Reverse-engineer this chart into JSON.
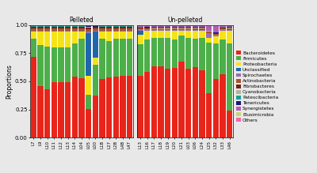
{
  "pelleted_samples": [
    "L7",
    "L9",
    "L10",
    "L11",
    "L12",
    "L13",
    "L14",
    "L04",
    "L05",
    "L00",
    "L1B",
    "L27",
    "L2B",
    "L4B",
    "L47"
  ],
  "unpelleted_samples": [
    "L13",
    "L16",
    "L17",
    "L18",
    "L19",
    "L20",
    "L21",
    "L03",
    "L06",
    "L24",
    "L25",
    "L32",
    "L33",
    "L46"
  ],
  "categories": [
    "Bacteroidetes",
    "Firmicutes",
    "Proteobacteria",
    "Unclassified",
    "Spirochaetes",
    "Actinobacteria",
    "Fibrobacteres",
    "Cyanobacteria",
    "Patescibacteria",
    "Tenericutes",
    "Synergistetes",
    "Elusimicrobia",
    "Others"
  ],
  "colors": [
    "#e8251a",
    "#4daf4a",
    "#f5e31a",
    "#2166ac",
    "#9970ab",
    "#a65628",
    "#7b1c1c",
    "#aab89a",
    "#1a9e96",
    "#17177a",
    "#b05fba",
    "#c8d86e",
    "#f564a9"
  ],
  "pelleted_data": [
    [
      0.7,
      0.46,
      0.43,
      0.49,
      0.5,
      0.49,
      0.54,
      0.52,
      0.2,
      0.36,
      0.52,
      0.53,
      0.54,
      0.54,
      0.54
    ],
    [
      0.16,
      0.36,
      0.38,
      0.31,
      0.31,
      0.31,
      0.3,
      0.34,
      0.1,
      0.26,
      0.36,
      0.32,
      0.34,
      0.33,
      0.33
    ],
    [
      0.06,
      0.12,
      0.13,
      0.14,
      0.14,
      0.14,
      0.1,
      0.06,
      0.13,
      0.06,
      0.06,
      0.08,
      0.06,
      0.06,
      0.06
    ],
    [
      0.002,
      0.002,
      0.002,
      0.002,
      0.002,
      0.002,
      0.002,
      0.002,
      0.3,
      0.22,
      0.002,
      0.002,
      0.002,
      0.002,
      0.002
    ],
    [
      0.01,
      0.01,
      0.01,
      0.01,
      0.01,
      0.01,
      0.01,
      0.01,
      0.01,
      0.01,
      0.01,
      0.01,
      0.01,
      0.01,
      0.01
    ],
    [
      0.02,
      0.02,
      0.02,
      0.02,
      0.02,
      0.02,
      0.02,
      0.02,
      0.02,
      0.02,
      0.02,
      0.02,
      0.02,
      0.02,
      0.02
    ],
    [
      0.01,
      0.01,
      0.01,
      0.01,
      0.01,
      0.01,
      0.01,
      0.01,
      0.01,
      0.01,
      0.01,
      0.01,
      0.01,
      0.01,
      0.01
    ],
    [
      0.003,
      0.003,
      0.003,
      0.003,
      0.003,
      0.003,
      0.003,
      0.003,
      0.003,
      0.003,
      0.003,
      0.003,
      0.003,
      0.003,
      0.003
    ],
    [
      0.003,
      0.003,
      0.003,
      0.003,
      0.003,
      0.003,
      0.003,
      0.003,
      0.003,
      0.003,
      0.003,
      0.003,
      0.003,
      0.003,
      0.003
    ],
    [
      0.003,
      0.003,
      0.003,
      0.003,
      0.003,
      0.003,
      0.003,
      0.003,
      0.003,
      0.003,
      0.003,
      0.003,
      0.003,
      0.003,
      0.003
    ],
    [
      0.003,
      0.003,
      0.003,
      0.003,
      0.003,
      0.003,
      0.003,
      0.003,
      0.003,
      0.003,
      0.003,
      0.003,
      0.003,
      0.003,
      0.003
    ],
    [
      0.003,
      0.003,
      0.003,
      0.003,
      0.003,
      0.003,
      0.003,
      0.003,
      0.003,
      0.003,
      0.003,
      0.003,
      0.003,
      0.003,
      0.003
    ],
    [
      0.003,
      0.003,
      0.003,
      0.003,
      0.003,
      0.003,
      0.003,
      0.003,
      0.003,
      0.003,
      0.003,
      0.003,
      0.003,
      0.003,
      0.003
    ]
  ],
  "unpelleted_data": [
    [
      0.54,
      0.56,
      0.6,
      0.6,
      0.58,
      0.58,
      0.64,
      0.58,
      0.58,
      0.56,
      0.38,
      0.52,
      0.56,
      0.22
    ],
    [
      0.28,
      0.28,
      0.24,
      0.24,
      0.26,
      0.24,
      0.22,
      0.26,
      0.24,
      0.27,
      0.44,
      0.32,
      0.3,
      0.56
    ],
    [
      0.08,
      0.07,
      0.06,
      0.06,
      0.06,
      0.07,
      0.04,
      0.06,
      0.06,
      0.06,
      0.04,
      0.06,
      0.08,
      0.1
    ],
    [
      0.04,
      0.002,
      0.002,
      0.002,
      0.002,
      0.002,
      0.002,
      0.002,
      0.002,
      0.002,
      0.002,
      0.002,
      0.002,
      0.002
    ],
    [
      0.01,
      0.01,
      0.01,
      0.01,
      0.01,
      0.01,
      0.01,
      0.01,
      0.01,
      0.01,
      0.04,
      0.01,
      0.01,
      0.01
    ],
    [
      0.01,
      0.01,
      0.01,
      0.01,
      0.01,
      0.01,
      0.01,
      0.01,
      0.01,
      0.01,
      0.01,
      0.01,
      0.01,
      0.01
    ],
    [
      0.003,
      0.003,
      0.003,
      0.003,
      0.003,
      0.003,
      0.003,
      0.003,
      0.003,
      0.003,
      0.003,
      0.003,
      0.003,
      0.003
    ],
    [
      0.003,
      0.003,
      0.003,
      0.003,
      0.003,
      0.003,
      0.003,
      0.003,
      0.003,
      0.003,
      0.003,
      0.003,
      0.003,
      0.003
    ],
    [
      0.003,
      0.003,
      0.003,
      0.003,
      0.003,
      0.003,
      0.003,
      0.003,
      0.003,
      0.003,
      0.003,
      0.003,
      0.003,
      0.003
    ],
    [
      0.003,
      0.003,
      0.003,
      0.003,
      0.003,
      0.003,
      0.003,
      0.003,
      0.003,
      0.003,
      0.003,
      0.003,
      0.003,
      0.003
    ],
    [
      0.01,
      0.01,
      0.01,
      0.01,
      0.01,
      0.01,
      0.01,
      0.01,
      0.01,
      0.01,
      0.04,
      0.06,
      0.01,
      0.01
    ],
    [
      0.003,
      0.003,
      0.003,
      0.003,
      0.003,
      0.003,
      0.003,
      0.003,
      0.003,
      0.003,
      0.003,
      0.003,
      0.003,
      0.003
    ],
    [
      0.003,
      0.003,
      0.003,
      0.003,
      0.003,
      0.003,
      0.003,
      0.003,
      0.003,
      0.003,
      0.003,
      0.003,
      0.003,
      0.003
    ]
  ],
  "ylabel": "Proportions",
  "panel_labels": [
    "Pelleted",
    "Un-pelleted"
  ],
  "ylim": [
    0.0,
    1.0
  ],
  "yticks": [
    0.0,
    0.25,
    0.5,
    0.75,
    1.0
  ],
  "bg_color": "#e8e8e8",
  "panel_bg": "#ffffff"
}
